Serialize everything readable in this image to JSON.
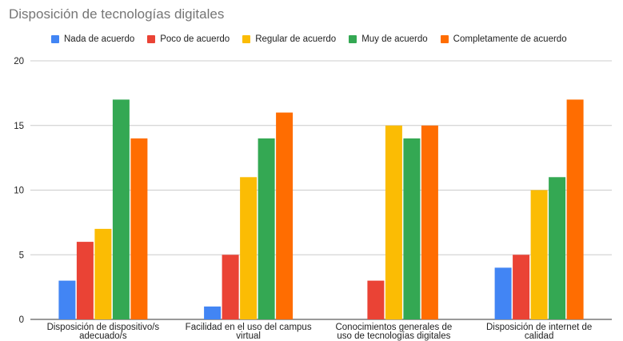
{
  "chart_data": {
    "type": "bar",
    "title": "Disposición de tecnologías digitales",
    "xlabel": "",
    "ylabel": "",
    "ylim": [
      0,
      20
    ],
    "yticks": [
      0,
      5,
      10,
      15,
      20
    ],
    "grid": true,
    "legend_position": "top",
    "categories": [
      [
        "Disposición de dispositivo/s",
        "adecuado/s"
      ],
      [
        "Facilidad en el uso del campus",
        "virtual"
      ],
      [
        "Conocimientos generales de",
        "uso de tecnologías digitales"
      ],
      [
        "Disposición de internet de",
        "calidad"
      ]
    ],
    "series": [
      {
        "name": "Nada de acuerdo",
        "color": "#4285f4",
        "values": [
          3,
          1,
          0,
          4
        ]
      },
      {
        "name": "Poco de acuerdo",
        "color": "#ea4335",
        "values": [
          6,
          5,
          3,
          5
        ]
      },
      {
        "name": "Regular de acuerdo",
        "color": "#fbbc04",
        "values": [
          7,
          11,
          15,
          10
        ]
      },
      {
        "name": "Muy de acuerdo",
        "color": "#34a853",
        "values": [
          17,
          14,
          14,
          11
        ]
      },
      {
        "name": "Completamente de acuerdo",
        "color": "#ff6d01",
        "values": [
          14,
          16,
          15,
          17
        ]
      }
    ]
  }
}
